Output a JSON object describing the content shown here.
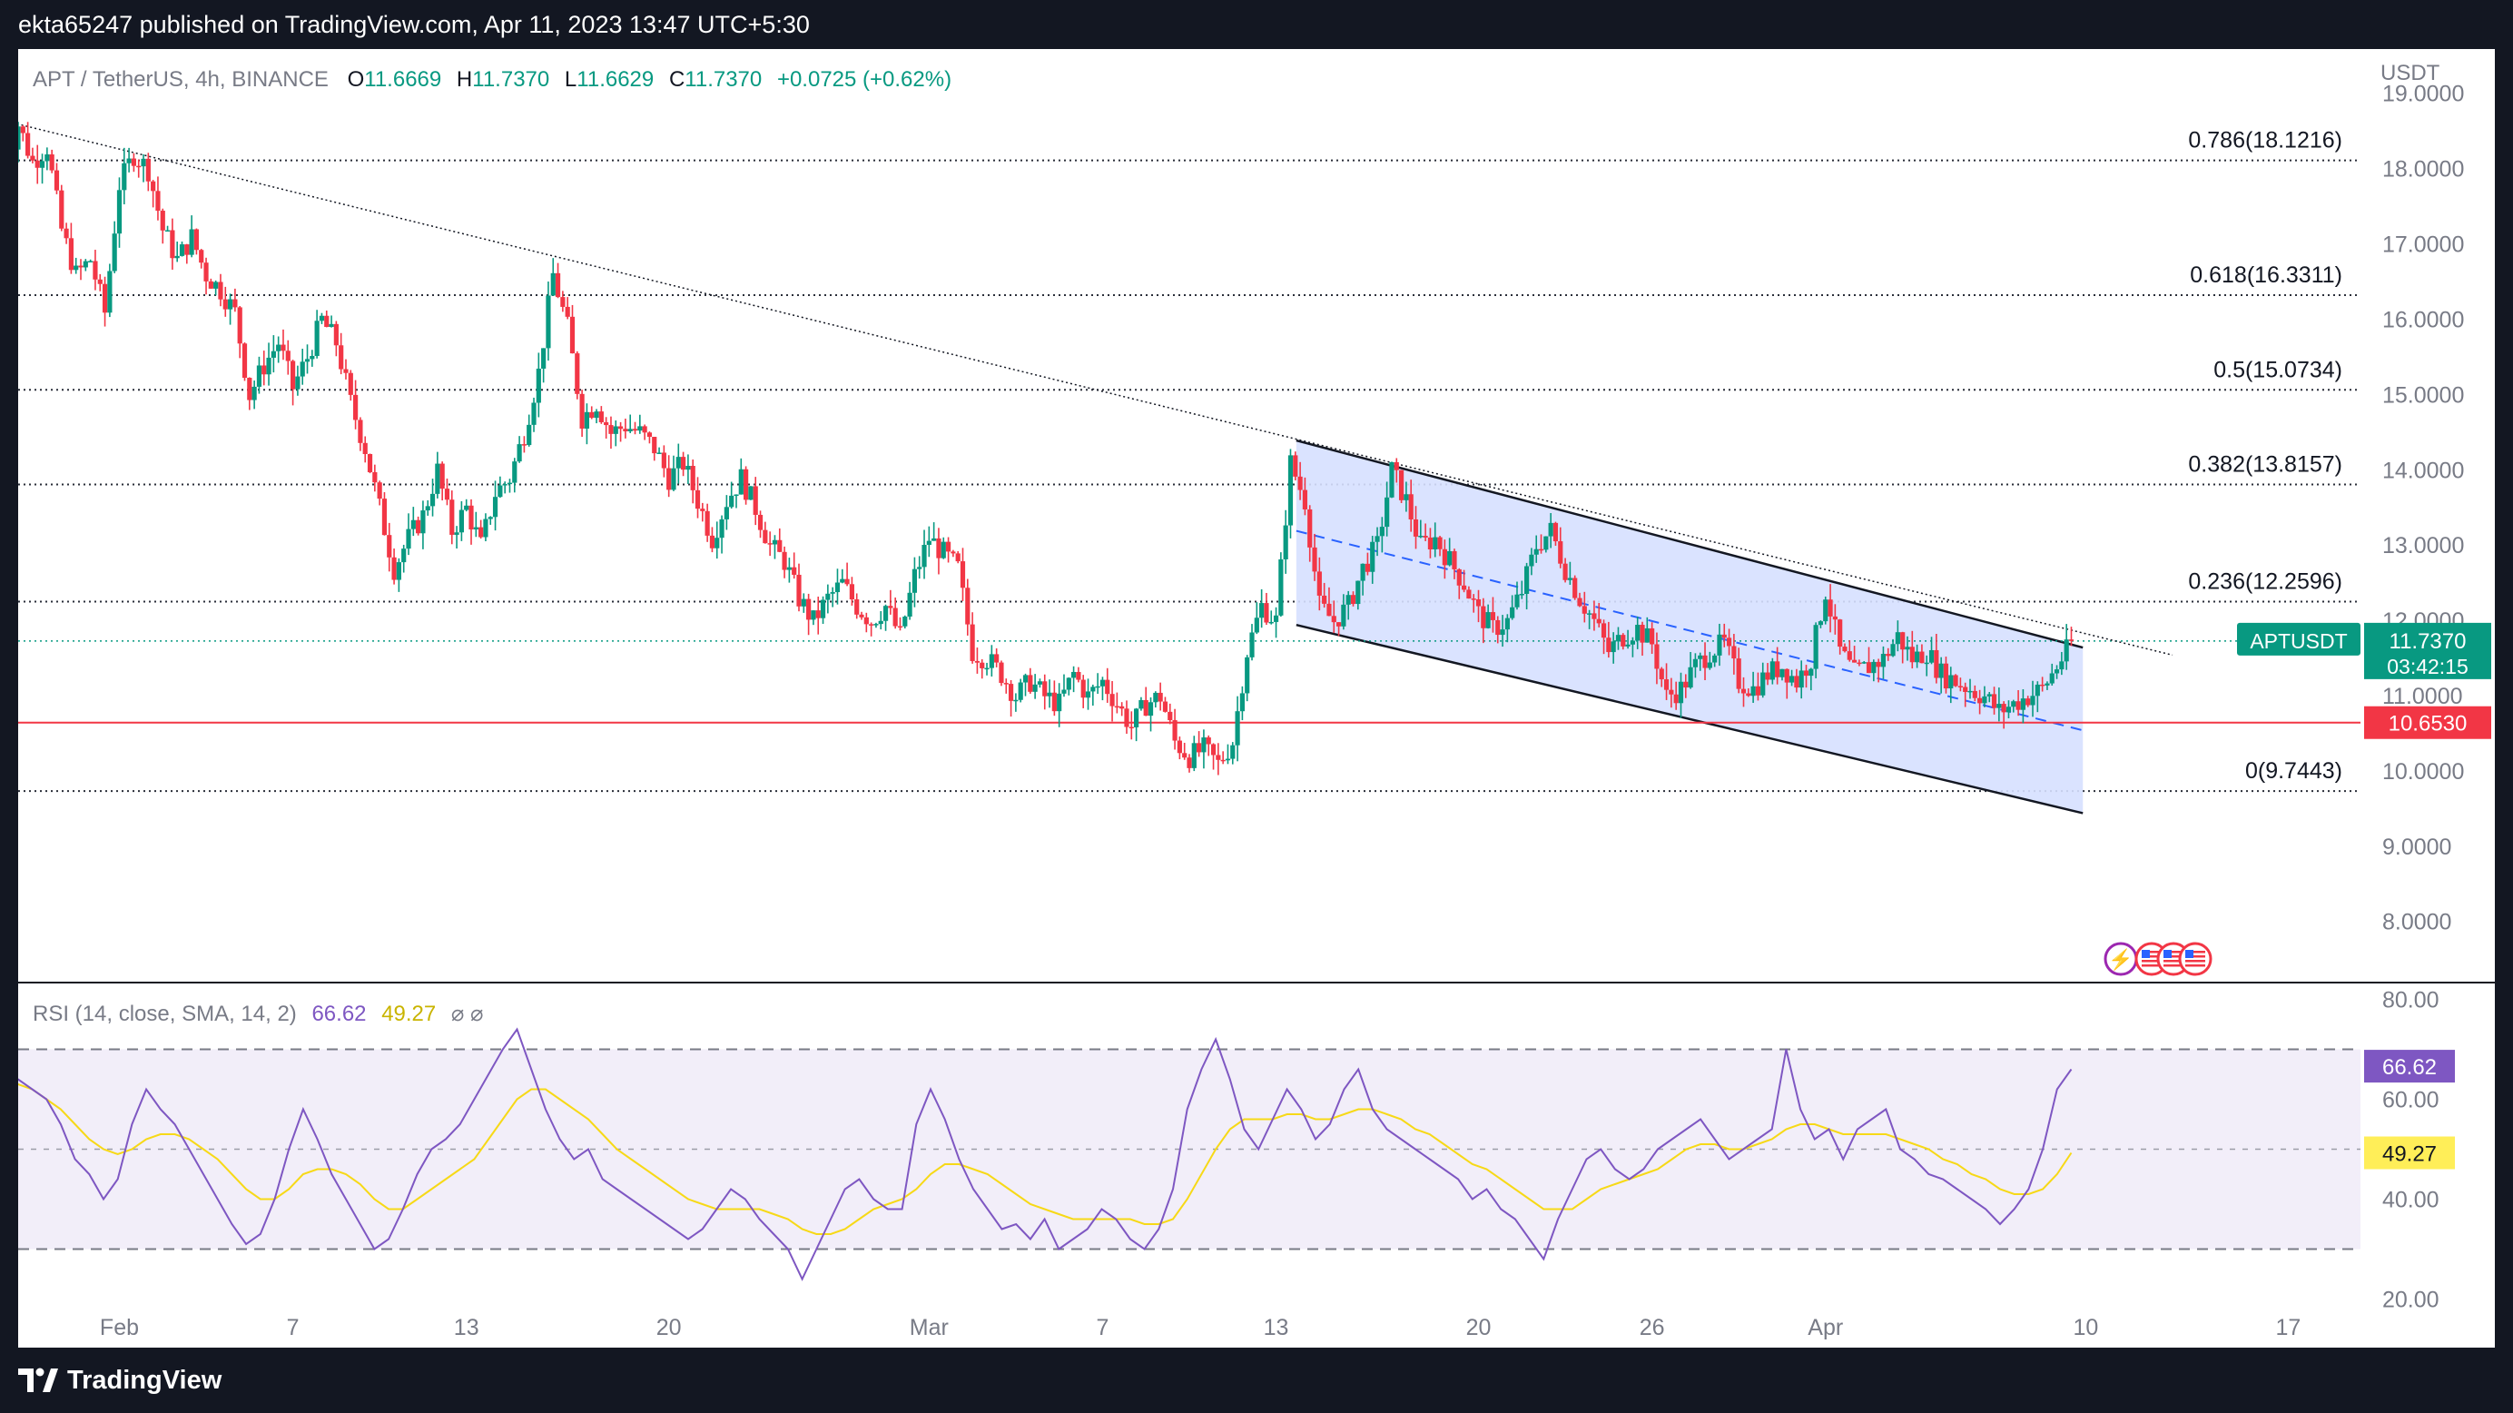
{
  "header": {
    "published": "ekta65247 published on TradingView.com, Apr 11, 2023 13:47 UTC+5:30"
  },
  "symbol": {
    "name": "APT / TetherUS, 4h, BINANCE",
    "o_label": "O",
    "o": "11.6669",
    "h_label": "H",
    "h": "11.7370",
    "l_label": "L",
    "l": "11.6629",
    "c_label": "C",
    "c": "11.7370",
    "change": "+0.0725 (+0.62%)"
  },
  "axis": {
    "currency": "USDT"
  },
  "price_tag": {
    "ticker": "APTUSDT",
    "price": "11.7370",
    "countdown": "03:42:15"
  },
  "support_tag": "10.6530",
  "rsi_legend": {
    "label": "RSI (14, close, SMA, 14, 2)",
    "rsi": "66.62",
    "sma": "49.27",
    "sym": "⌀ ⌀"
  },
  "footer": {
    "brand": "TradingView"
  },
  "colors": {
    "up": "#089981",
    "down": "#f23645",
    "rsi": "#7e57c2",
    "rsi_sma": "#f7d917",
    "channel_fill": "#d6e0ff",
    "support": "#f23645"
  },
  "chart_data": [
    {
      "type": "candlestick",
      "ylim": [
        7.2,
        19.6
      ],
      "ticks": [
        8.0,
        9.0,
        10.0,
        11.0,
        12.0,
        13.0,
        14.0,
        15.0,
        16.0,
        17.0,
        18.0,
        19.0
      ],
      "tick_labels": [
        "8.0000",
        "9.0000",
        "10.0000",
        "11.0000",
        "12.0000",
        "13.0000",
        "14.0000",
        "15.0000",
        "16.0000",
        "17.0000",
        "18.0000",
        "19.0000"
      ],
      "x_labels": [
        {
          "text": "Feb",
          "day": 4
        },
        {
          "text": "7",
          "day": 10
        },
        {
          "text": "13",
          "day": 16
        },
        {
          "text": "20",
          "day": 23
        },
        {
          "text": "Mar",
          "day": 32
        },
        {
          "text": "7",
          "day": 38
        },
        {
          "text": "13",
          "day": 44
        },
        {
          "text": "20",
          "day": 51
        },
        {
          "text": "26",
          "day": 57
        },
        {
          "text": "Apr",
          "day": 63
        },
        {
          "text": "10",
          "day": 72
        },
        {
          "text": "17",
          "day": 79
        }
      ],
      "fib_levels": [
        {
          "label": "0.786(18.1216)",
          "value": 18.1216
        },
        {
          "label": "0.618(16.3311)",
          "value": 16.3311
        },
        {
          "label": "0.5(15.0734)",
          "value": 15.0734
        },
        {
          "label": "0.382(13.8157)",
          "value": 13.8157
        },
        {
          "label": "0.236(12.2596)",
          "value": 12.2596
        },
        {
          "label": "0(9.7443)",
          "value": 9.7443
        }
      ],
      "support": 10.653,
      "last_price": 11.737,
      "price_path": [
        [
          0,
          18.0
        ],
        [
          0.5,
          18.6
        ],
        [
          1,
          18.1
        ],
        [
          1.5,
          18.3
        ],
        [
          2,
          17.2
        ],
        [
          2.5,
          16.6
        ],
        [
          3,
          16.8
        ],
        [
          3.5,
          16.1
        ],
        [
          4,
          17.8
        ],
        [
          4.5,
          18.2
        ],
        [
          5,
          18.0
        ],
        [
          5.5,
          17.2
        ],
        [
          6,
          16.8
        ],
        [
          6.5,
          17.1
        ],
        [
          7,
          16.6
        ],
        [
          7.5,
          16.4
        ],
        [
          8,
          16.1
        ],
        [
          8.5,
          15.0
        ],
        [
          9,
          15.4
        ],
        [
          9.5,
          15.7
        ],
        [
          10,
          15.1
        ],
        [
          10.5,
          15.5
        ],
        [
          11,
          16.0
        ],
        [
          11.5,
          15.7
        ],
        [
          12,
          14.9
        ],
        [
          12.5,
          14.3
        ],
        [
          13,
          13.5
        ],
        [
          13.5,
          12.7
        ],
        [
          14,
          13.1
        ],
        [
          14.5,
          13.4
        ],
        [
          15,
          14.0
        ],
        [
          15.5,
          13.2
        ],
        [
          16,
          13.5
        ],
        [
          16.5,
          13.0
        ],
        [
          17,
          13.7
        ],
        [
          17.5,
          13.9
        ],
        [
          18,
          14.5
        ],
        [
          18.5,
          15.3
        ],
        [
          19,
          16.6
        ],
        [
          19.5,
          15.9
        ],
        [
          20,
          14.7
        ],
        [
          20.5,
          14.9
        ],
        [
          21,
          14.5
        ],
        [
          21.5,
          14.6
        ],
        [
          22,
          14.5
        ],
        [
          22.5,
          14.3
        ],
        [
          23,
          13.9
        ],
        [
          23.5,
          14.1
        ],
        [
          24,
          13.6
        ],
        [
          24.5,
          13.1
        ],
        [
          25,
          13.6
        ],
        [
          25.5,
          13.9
        ],
        [
          26,
          13.5
        ],
        [
          26.5,
          13.0
        ],
        [
          27,
          12.8
        ],
        [
          27.5,
          12.3
        ],
        [
          28,
          12.0
        ],
        [
          28.5,
          12.3
        ],
        [
          29,
          12.5
        ],
        [
          29.5,
          12.2
        ],
        [
          30,
          12.0
        ],
        [
          30.5,
          12.2
        ],
        [
          31,
          11.8
        ],
        [
          31.5,
          12.6
        ],
        [
          32,
          13.1
        ],
        [
          32.5,
          12.9
        ],
        [
          33,
          12.7
        ],
        [
          33.5,
          11.6
        ],
        [
          34,
          11.5
        ],
        [
          34.5,
          11.3
        ],
        [
          35,
          11.0
        ],
        [
          35.5,
          11.2
        ],
        [
          36,
          11.0
        ],
        [
          36.5,
          10.9
        ],
        [
          37,
          11.3
        ],
        [
          37.5,
          11.0
        ],
        [
          38,
          11.2
        ],
        [
          38.5,
          10.9
        ],
        [
          39,
          10.6
        ],
        [
          39.5,
          10.9
        ],
        [
          40,
          11.0
        ],
        [
          40.5,
          10.4
        ],
        [
          41,
          10.2
        ],
        [
          41.5,
          10.3
        ],
        [
          42,
          10.1
        ],
        [
          42.5,
          10.4
        ],
        [
          43,
          11.6
        ],
        [
          43.5,
          12.2
        ],
        [
          44,
          12.0
        ],
        [
          44.5,
          14.1
        ],
        [
          45,
          13.6
        ],
        [
          45.5,
          12.2
        ],
        [
          46,
          12.0
        ],
        [
          46.5,
          12.2
        ],
        [
          47,
          12.7
        ],
        [
          47.5,
          13.0
        ],
        [
          48,
          14.0
        ],
        [
          48.5,
          13.6
        ],
        [
          49,
          13.0
        ],
        [
          49.5,
          13.1
        ],
        [
          50,
          12.8
        ],
        [
          50.5,
          12.5
        ],
        [
          51,
          12.1
        ],
        [
          51.5,
          11.9
        ],
        [
          52,
          12.0
        ],
        [
          52.5,
          12.4
        ],
        [
          53,
          13.0
        ],
        [
          53.5,
          13.2
        ],
        [
          54,
          12.7
        ],
        [
          54.5,
          12.3
        ],
        [
          55,
          12.0
        ],
        [
          55.5,
          11.6
        ],
        [
          56,
          11.8
        ],
        [
          56.5,
          11.9
        ],
        [
          57,
          11.7
        ],
        [
          57.5,
          11.0
        ],
        [
          58,
          11.1
        ],
        [
          58.5,
          11.4
        ],
        [
          59,
          11.6
        ],
        [
          59.5,
          11.7
        ],
        [
          60,
          11.2
        ],
        [
          60.5,
          11.1
        ],
        [
          61,
          11.3
        ],
        [
          61.5,
          11.4
        ],
        [
          62,
          11.2
        ],
        [
          62.5,
          11.5
        ],
        [
          63,
          12.4
        ],
        [
          63.5,
          11.6
        ],
        [
          64,
          11.3
        ],
        [
          64.5,
          11.4
        ],
        [
          65,
          11.5
        ],
        [
          65.5,
          11.8
        ],
        [
          66,
          11.5
        ],
        [
          66.5,
          11.6
        ],
        [
          67,
          11.3
        ],
        [
          67.5,
          11.2
        ],
        [
          68,
          11.1
        ],
        [
          68.5,
          11.0
        ],
        [
          69,
          10.8
        ],
        [
          69.5,
          10.9
        ],
        [
          70,
          11.0
        ],
        [
          70.5,
          11.1
        ],
        [
          71,
          11.4
        ],
        [
          71.5,
          11.7
        ]
      ],
      "trendline": {
        "from": [
          0,
          18.65
        ],
        "to": [
          75,
          11.55
        ]
      },
      "channel": {
        "upper": [
          [
            44.7,
            14.4
          ],
          [
            71.9,
            11.65
          ]
        ],
        "lower": [
          [
            44.7,
            11.95
          ],
          [
            71.9,
            9.45
          ]
        ],
        "mid": [
          [
            44.7,
            13.2
          ],
          [
            71.9,
            10.55
          ]
        ],
        "box_right_day": 71.9
      }
    },
    {
      "type": "line",
      "name": "RSI",
      "ylim": [
        15,
        83
      ],
      "ticks": [
        20,
        40,
        60,
        80
      ],
      "tick_labels": [
        "20.00",
        "40.00",
        "60.00",
        "80.00"
      ],
      "bands": [
        30,
        50,
        70
      ],
      "rsi": [
        66,
        64,
        62,
        60,
        55,
        48,
        45,
        40,
        44,
        55,
        62,
        58,
        55,
        50,
        45,
        40,
        35,
        31,
        33,
        40,
        50,
        58,
        52,
        45,
        40,
        35,
        30,
        32,
        38,
        45,
        50,
        52,
        55,
        60,
        65,
        70,
        74,
        66,
        58,
        52,
        48,
        50,
        44,
        42,
        40,
        38,
        36,
        34,
        32,
        34,
        38,
        42,
        40,
        36,
        33,
        30,
        24,
        30,
        36,
        42,
        44,
        40,
        38,
        38,
        55,
        62,
        56,
        48,
        42,
        38,
        34,
        35,
        32,
        36,
        30,
        32,
        34,
        38,
        36,
        32,
        30,
        34,
        42,
        58,
        66,
        72,
        64,
        54,
        50,
        56,
        62,
        58,
        52,
        55,
        62,
        66,
        58,
        54,
        52,
        50,
        48,
        46,
        44,
        40,
        42,
        38,
        36,
        32,
        28,
        36,
        42,
        48,
        50,
        46,
        44,
        46,
        50,
        52,
        54,
        56,
        52,
        48,
        50,
        52,
        54,
        70,
        58,
        52,
        54,
        48,
        54,
        56,
        58,
        50,
        48,
        45,
        44,
        42,
        40,
        38,
        35,
        38,
        42,
        50,
        62,
        66
      ],
      "sma": [
        64,
        63,
        62,
        60,
        58,
        55,
        52,
        50,
        49,
        50,
        52,
        53,
        53,
        52,
        50,
        48,
        45,
        42,
        40,
        40,
        42,
        45,
        46,
        46,
        45,
        43,
        40,
        38,
        38,
        40,
        42,
        44,
        46,
        48,
        52,
        56,
        60,
        62,
        62,
        60,
        58,
        56,
        53,
        50,
        48,
        46,
        44,
        42,
        40,
        39,
        38,
        38,
        38,
        38,
        37,
        36,
        34,
        33,
        33,
        34,
        36,
        38,
        39,
        40,
        42,
        45,
        47,
        47,
        46,
        45,
        43,
        41,
        39,
        38,
        37,
        36,
        36,
        36,
        36,
        36,
        35,
        35,
        36,
        40,
        45,
        50,
        54,
        56,
        56,
        56,
        57,
        57,
        56,
        56,
        57,
        58,
        58,
        57,
        56,
        54,
        53,
        51,
        49,
        47,
        46,
        44,
        42,
        40,
        38,
        38,
        38,
        40,
        42,
        43,
        44,
        45,
        46,
        48,
        50,
        51,
        51,
        50,
        50,
        51,
        52,
        54,
        55,
        55,
        54,
        53,
        53,
        53,
        53,
        52,
        51,
        50,
        48,
        47,
        45,
        44,
        42,
        41,
        41,
        42,
        45,
        49.27
      ]
    }
  ]
}
